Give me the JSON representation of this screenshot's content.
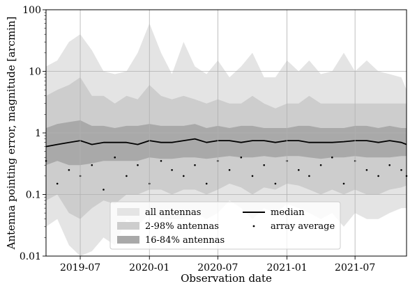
{
  "chart_data": {
    "type": "area",
    "title": "",
    "xlabel": "Observation date",
    "ylabel": "Antenna pointing error, magnitude [arcmin]",
    "yscale": "log",
    "ylim": [
      0.01,
      100
    ],
    "xlim": [
      "2019-04-01",
      "2021-11-15"
    ],
    "grid": true,
    "legend_position": "bottom-center",
    "y_ticks": [
      {
        "value": 0.01,
        "label": "0.01"
      },
      {
        "value": 0.1,
        "label": "0.1"
      },
      {
        "value": 1,
        "label": "1"
      },
      {
        "value": 10,
        "label": "10"
      },
      {
        "value": 100,
        "label": "100"
      }
    ],
    "x_ticks": [
      {
        "value": "2019-07-01",
        "label": "2019-07"
      },
      {
        "value": "2020-01-01",
        "label": "2020-01"
      },
      {
        "value": "2020-07-01",
        "label": "2020-07"
      },
      {
        "value": "2021-01-01",
        "label": "2021-01"
      },
      {
        "value": "2021-07-01",
        "label": "2021-07"
      }
    ],
    "legend": [
      {
        "label": "all antennas",
        "kind": "patch",
        "color": "#e4e4e4"
      },
      {
        "label": "2-98% antennas",
        "kind": "patch",
        "color": "#cdcdcd"
      },
      {
        "label": "16-84% antennas",
        "kind": "patch",
        "color": "#a9a9a9"
      },
      {
        "label": "median",
        "kind": "line",
        "color": "#000000"
      },
      {
        "label": "array average",
        "kind": "dot",
        "color": "#000000"
      }
    ],
    "x": [
      "2019-04-01",
      "2019-05-01",
      "2019-06-01",
      "2019-07-01",
      "2019-08-01",
      "2019-09-01",
      "2019-10-01",
      "2019-11-01",
      "2019-12-01",
      "2020-01-01",
      "2020-02-01",
      "2020-03-01",
      "2020-04-01",
      "2020-05-01",
      "2020-06-01",
      "2020-07-01",
      "2020-08-01",
      "2020-09-01",
      "2020-10-01",
      "2020-11-01",
      "2020-12-01",
      "2021-01-01",
      "2021-02-01",
      "2021-03-01",
      "2021-04-01",
      "2021-05-01",
      "2021-06-01",
      "2021-07-01",
      "2021-08-01",
      "2021-09-01",
      "2021-10-01",
      "2021-11-01",
      "2021-11-15"
    ],
    "series": [
      {
        "name": "all antennas",
        "upper": [
          12,
          15,
          30,
          40,
          22,
          10,
          9,
          10,
          20,
          60,
          20,
          9,
          30,
          12,
          9,
          15,
          8,
          12,
          20,
          8,
          8,
          15,
          10,
          15,
          9,
          10,
          20,
          10,
          15,
          10,
          9,
          8,
          5
        ],
        "lower": [
          0.03,
          0.04,
          0.015,
          0.01,
          0.012,
          0.02,
          0.015,
          0.04,
          0.03,
          0.05,
          0.04,
          0.04,
          0.04,
          0.05,
          0.04,
          0.05,
          0.08,
          0.06,
          0.04,
          0.06,
          0.05,
          0.07,
          0.06,
          0.05,
          0.04,
          0.05,
          0.03,
          0.05,
          0.04,
          0.04,
          0.05,
          0.06,
          0.06
        ]
      },
      {
        "name": "2-98% antennas",
        "upper": [
          4,
          5,
          6,
          8,
          4,
          4,
          3,
          4,
          3.5,
          6,
          4,
          3.5,
          4,
          3.5,
          3,
          3.5,
          3,
          3,
          4,
          3,
          2.5,
          3,
          3,
          4,
          3,
          3,
          3,
          3,
          3,
          3,
          3,
          3,
          3
        ],
        "lower": [
          0.08,
          0.1,
          0.05,
          0.04,
          0.06,
          0.08,
          0.07,
          0.1,
          0.1,
          0.12,
          0.12,
          0.1,
          0.12,
          0.12,
          0.1,
          0.12,
          0.15,
          0.13,
          0.1,
          0.13,
          0.12,
          0.15,
          0.14,
          0.12,
          0.1,
          0.12,
          0.1,
          0.12,
          0.1,
          0.1,
          0.12,
          0.13,
          0.14
        ]
      },
      {
        "name": "16-84% antennas",
        "upper": [
          1.2,
          1.4,
          1.5,
          1.6,
          1.3,
          1.3,
          1.2,
          1.3,
          1.3,
          1.4,
          1.3,
          1.3,
          1.3,
          1.4,
          1.2,
          1.3,
          1.2,
          1.3,
          1.3,
          1.2,
          1.2,
          1.2,
          1.3,
          1.3,
          1.2,
          1.2,
          1.2,
          1.3,
          1.3,
          1.2,
          1.3,
          1.2,
          1.2
        ],
        "lower": [
          0.3,
          0.35,
          0.3,
          0.3,
          0.32,
          0.35,
          0.35,
          0.35,
          0.35,
          0.4,
          0.38,
          0.38,
          0.4,
          0.4,
          0.38,
          0.4,
          0.42,
          0.4,
          0.4,
          0.42,
          0.4,
          0.42,
          0.42,
          0.4,
          0.38,
          0.4,
          0.4,
          0.42,
          0.4,
          0.4,
          0.4,
          0.42,
          0.42
        ]
      },
      {
        "name": "median",
        "values": [
          0.6,
          0.65,
          0.7,
          0.75,
          0.65,
          0.7,
          0.7,
          0.7,
          0.65,
          0.75,
          0.7,
          0.7,
          0.75,
          0.8,
          0.7,
          0.75,
          0.75,
          0.7,
          0.75,
          0.75,
          0.7,
          0.75,
          0.75,
          0.7,
          0.7,
          0.7,
          0.72,
          0.75,
          0.75,
          0.7,
          0.75,
          0.7,
          0.65
        ]
      },
      {
        "name": "array average",
        "values": [
          0.35,
          0.15,
          0.25,
          0.2,
          0.3,
          0.12,
          0.4,
          0.2,
          0.3,
          0.15,
          0.35,
          0.25,
          0.2,
          0.3,
          0.15,
          0.35,
          0.25,
          0.4,
          0.2,
          0.3,
          0.15,
          0.35,
          0.25,
          0.2,
          0.3,
          0.4,
          0.15,
          0.35,
          0.25,
          0.2,
          0.3,
          0.25,
          0.2
        ]
      }
    ]
  }
}
